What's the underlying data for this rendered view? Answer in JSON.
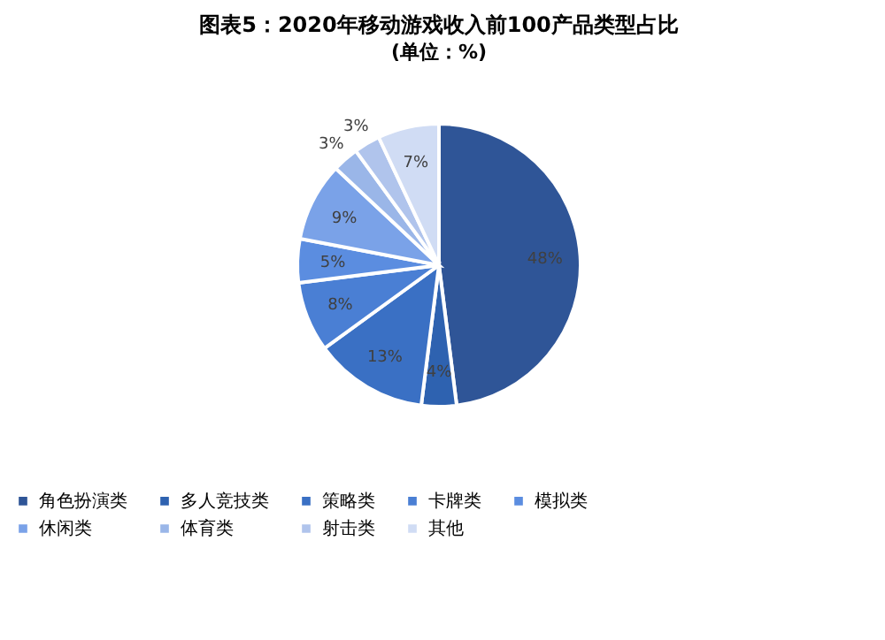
{
  "chart_data": {
    "type": "pie",
    "title": "图表5：2020年移动游戏收入前100产品类型占比",
    "subtitle": "(单位：%)",
    "categories": [
      "角色扮演类",
      "多人竞技类",
      "策略类",
      "卡牌类",
      "模拟类",
      "休闲类",
      "体育类",
      "射击类",
      "其他"
    ],
    "values": [
      48,
      4,
      13,
      8,
      5,
      9,
      3,
      3,
      7
    ],
    "colors": [
      "#2f5597",
      "#2e62b0",
      "#3a70c4",
      "#4a7fd4",
      "#5b8de0",
      "#7aa2e8",
      "#9ab6e8",
      "#b0c4ec",
      "#d0dcf4"
    ],
    "value_labels": [
      "48%",
      "4%",
      "13%",
      "8%",
      "5%",
      "9%",
      "3%",
      "3%",
      "7%"
    ],
    "legend": "bottom"
  }
}
